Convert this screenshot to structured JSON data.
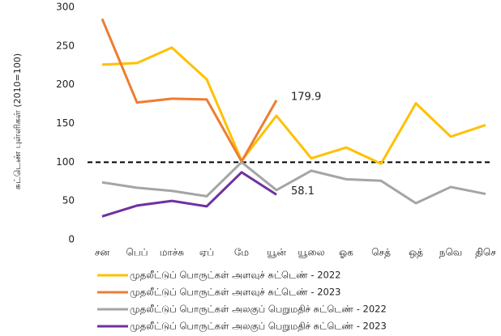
{
  "chart_data": {
    "type": "line",
    "y_label": "சுட்டெண் புள்ளிகள் (2010=100)",
    "categories": [
      "சன",
      "பெப்",
      "மாச்சு",
      "ஏப்",
      "மே",
      "யூன்",
      "யூலை",
      "ஓக",
      "செத்",
      "ஒத்",
      "நவெ",
      "திசெ"
    ],
    "series": [
      {
        "name": "முதலீட்டுப் பொருட்கள் அளவுச் சுட்டெண் - 2022",
        "color": "#ffc000",
        "values": [
          226,
          228,
          248,
          207,
          102,
          160,
          105,
          119,
          98,
          176,
          133,
          148
        ]
      },
      {
        "name": "முதலீட்டுப் பொருட்கள் அளவுச் சுட்டெண் - 2023",
        "color": "#ed7d31",
        "values": [
          285,
          177,
          182,
          181,
          101,
          179.9,
          null,
          null,
          null,
          null,
          null,
          null
        ]
      },
      {
        "name": "முதலீட்டுப் பொருட்கள் அலகுப் பெறுமதிச் சுட்டெண் - 2022",
        "color": "#a5a5a5",
        "values": [
          74,
          67,
          63,
          56,
          100,
          64,
          89,
          78,
          76,
          47,
          68,
          59
        ]
      },
      {
        "name": "முதலீட்டுப் பொருட்கள் அலகுப் பெறுமதிச் சுட்டெண் - 2023",
        "color": "#7030a0",
        "values": [
          30,
          44,
          50,
          43,
          87,
          58.1,
          null,
          null,
          null,
          null,
          null,
          null
        ]
      }
    ],
    "ylim": [
      0,
      300
    ],
    "yticks": [
      0,
      50,
      100,
      150,
      200,
      250,
      300
    ],
    "reference_line": 100,
    "grid": false,
    "legend": "bottom"
  }
}
